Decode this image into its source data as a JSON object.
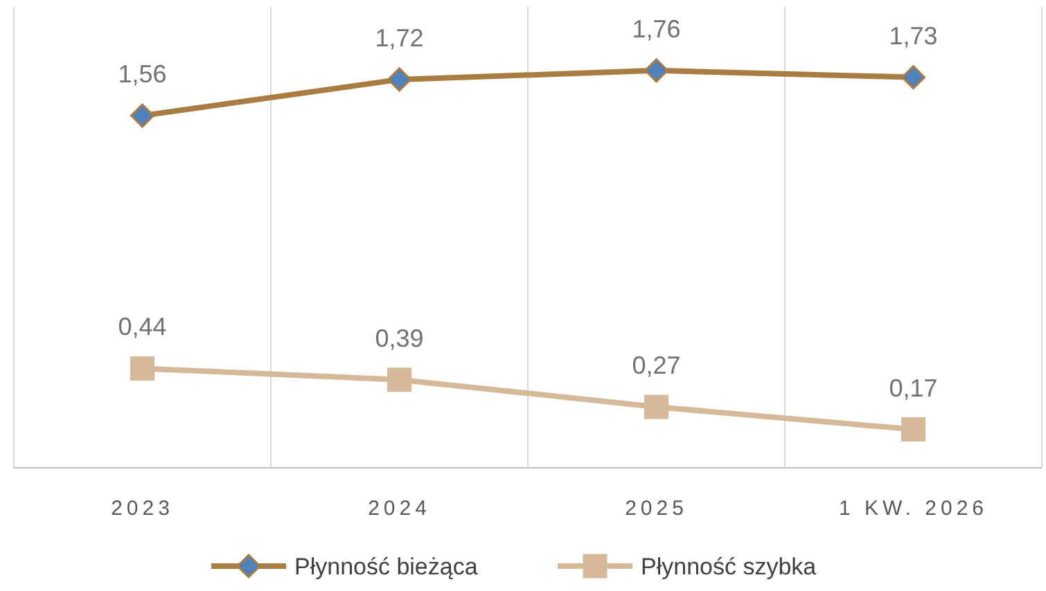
{
  "chart_data": {
    "type": "line",
    "categories": [
      "2023",
      "2024",
      "2025",
      "1 KW. 2026"
    ],
    "series": [
      {
        "name": "Płynność bieżąca",
        "color": "#a97c41",
        "marker": "diamond",
        "values": [
          1.56,
          1.72,
          1.76,
          1.73
        ],
        "value_labels": [
          "1,56",
          "1,72",
          "1,76",
          "1,73"
        ]
      },
      {
        "name": "Płynność szybka",
        "color": "#d5b999",
        "marker": "square",
        "values": [
          0.44,
          0.39,
          0.27,
          0.17
        ],
        "value_labels": [
          "0,44",
          "0,39",
          "0,27",
          "0,17"
        ]
      }
    ],
    "tick_labels": "x",
    "grid": "x",
    "legend": "bottom"
  }
}
